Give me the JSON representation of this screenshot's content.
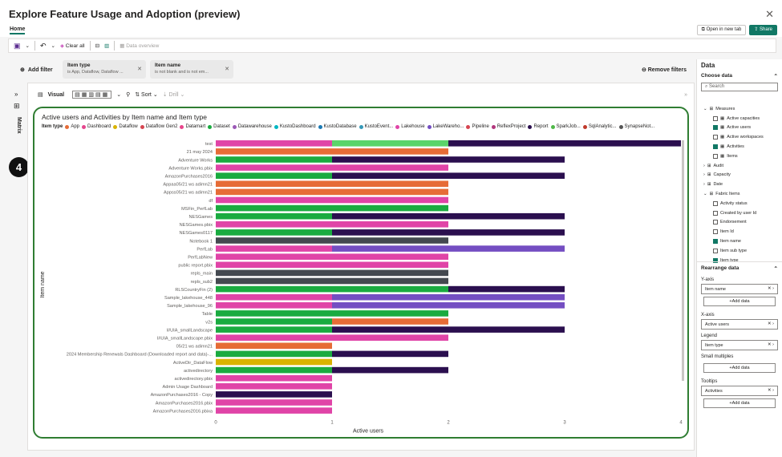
{
  "app": {
    "title": "Explore Feature Usage and Adoption (preview)",
    "tab_home": "Home",
    "open_new_tab": "Open in new tab",
    "share": "Share"
  },
  "toolbar": {
    "clear_all": "Clear all",
    "data_overview": "Data overview"
  },
  "filters": {
    "add_filter": "Add filter",
    "remove_filters": "Remove filters",
    "chips": [
      {
        "title": "Item type",
        "summary": "is App, Dataflow, Dataflow ..."
      },
      {
        "title": "Item name",
        "summary": "is not blank and is not em..."
      }
    ]
  },
  "left_rail": {
    "label": "Matrix",
    "step_badge": "4"
  },
  "visual_toolbar": {
    "visual": "Visual",
    "sort": "Sort",
    "drill": "Drill"
  },
  "chart_data": {
    "type": "bar",
    "orientation": "horizontal-stacked",
    "title": "Active users and Activities by Item name and Item type",
    "xlabel": "Active users",
    "ylabel": "Item name",
    "xlim": [
      0,
      4
    ],
    "xticks": [
      "0",
      "1",
      "2",
      "3",
      "4"
    ],
    "legend_title": "Item type",
    "legend": [
      {
        "name": "App",
        "color": "#e66c37"
      },
      {
        "name": "Dashboard",
        "color": "#e5468d"
      },
      {
        "name": "Dataflow",
        "color": "#d9b300"
      },
      {
        "name": "Dataflow Gen2",
        "color": "#d64550"
      },
      {
        "name": "Datamart",
        "color": "#e8458b"
      },
      {
        "name": "Dataset",
        "color": "#1aab40"
      },
      {
        "name": "Datawarehouse",
        "color": "#9b59b6"
      },
      {
        "name": "KustoDashboard",
        "color": "#00b7c3"
      },
      {
        "name": "KustoDatabase",
        "color": "#1b7ab5"
      },
      {
        "name": "KustoEvent...",
        "color": "#3599b8"
      },
      {
        "name": "Lakehouse",
        "color": "#e044a7"
      },
      {
        "name": "LakeWareho...",
        "color": "#744ec2"
      },
      {
        "name": "Pipeline",
        "color": "#d64550"
      },
      {
        "name": "ReflexProject",
        "color": "#b2367d"
      },
      {
        "name": "Report",
        "color": "#2b0f4f"
      },
      {
        "name": "SparkJob...",
        "color": "#4fb848"
      },
      {
        "name": "SqlAnalytic...",
        "color": "#c0392b"
      },
      {
        "name": "SynapseNot...",
        "color": "#555555"
      }
    ],
    "rows": [
      {
        "name": "test",
        "segments": [
          [
            "#e044a7",
            1
          ],
          [
            "#5ad46a",
            1
          ],
          [
            "#2b0f4f",
            2
          ]
        ]
      },
      {
        "name": "21 may 2024",
        "segments": [
          [
            "#e66c37",
            2
          ]
        ]
      },
      {
        "name": "Adventure Works",
        "segments": [
          [
            "#1aab40",
            1
          ],
          [
            "#2b0f4f",
            2
          ]
        ]
      },
      {
        "name": "Adventure Works.pbix",
        "segments": [
          [
            "#e044a7",
            2
          ]
        ]
      },
      {
        "name": "AmazonPurchases2016",
        "segments": [
          [
            "#1aab40",
            1
          ],
          [
            "#2b0f4f",
            2
          ]
        ]
      },
      {
        "name": "Appaa05/21 ws adimn21",
        "segments": [
          [
            "#e66c37",
            2
          ]
        ]
      },
      {
        "name": "Appss05/21 ws adimn21",
        "segments": [
          [
            "#e66c37",
            2
          ]
        ]
      },
      {
        "name": "df",
        "segments": [
          [
            "#e044a7",
            2
          ]
        ]
      },
      {
        "name": "MSFin_PerfLab",
        "segments": [
          [
            "#1aab40",
            2
          ]
        ]
      },
      {
        "name": "NESGames",
        "segments": [
          [
            "#1aab40",
            1
          ],
          [
            "#2b0f4f",
            2
          ]
        ]
      },
      {
        "name": "NESGames.pbix",
        "segments": [
          [
            "#e044a7",
            2
          ]
        ]
      },
      {
        "name": "NESGames0117",
        "segments": [
          [
            "#1aab40",
            1
          ],
          [
            "#2b0f4f",
            2
          ]
        ]
      },
      {
        "name": "Notebook 1",
        "segments": [
          [
            "#444950",
            2
          ]
        ]
      },
      {
        "name": "PerfLab",
        "segments": [
          [
            "#e044a7",
            1
          ],
          [
            "#744ec2",
            2
          ]
        ]
      },
      {
        "name": "PerfLabNew",
        "segments": [
          [
            "#e044a7",
            2
          ]
        ]
      },
      {
        "name": "public report.pbix",
        "segments": [
          [
            "#e044a7",
            2
          ]
        ]
      },
      {
        "name": "repls_main",
        "segments": [
          [
            "#444950",
            2
          ]
        ]
      },
      {
        "name": "repls_sub2",
        "segments": [
          [
            "#444950",
            2
          ]
        ]
      },
      {
        "name": "RLSCountryFin (2)",
        "segments": [
          [
            "#1aab40",
            2
          ],
          [
            "#2b0f4f",
            1
          ]
        ]
      },
      {
        "name": "Sample_lakehouse_448",
        "segments": [
          [
            "#e044a7",
            1
          ],
          [
            "#744ec2",
            2
          ]
        ]
      },
      {
        "name": "Sample_lakehouse_96",
        "segments": [
          [
            "#e044a7",
            1
          ],
          [
            "#744ec2",
            2
          ]
        ]
      },
      {
        "name": "Table",
        "segments": [
          [
            "#1aab40",
            2
          ]
        ]
      },
      {
        "name": "v2s",
        "segments": [
          [
            "#1aab40",
            1
          ],
          [
            "#e66c37",
            1
          ]
        ]
      },
      {
        "name": "I#UIA_smallLandscape",
        "segments": [
          [
            "#1aab40",
            1
          ],
          [
            "#2b0f4f",
            2
          ]
        ]
      },
      {
        "name": "I#UIA_smallLandscape.pbix",
        "segments": [
          [
            "#e044a7",
            2
          ]
        ]
      },
      {
        "name": "05/21 ws adimn21",
        "segments": [
          [
            "#e66c37",
            1
          ]
        ]
      },
      {
        "name": "2024 Membership Renewals Dashboard (Downloaded report and data)-...",
        "segments": [
          [
            "#1aab40",
            1
          ],
          [
            "#2b0f4f",
            1
          ]
        ]
      },
      {
        "name": "ActiveDir_DataFlow",
        "segments": [
          [
            "#d9b300",
            1
          ]
        ]
      },
      {
        "name": "activedirectory",
        "segments": [
          [
            "#1aab40",
            1
          ],
          [
            "#2b0f4f",
            1
          ]
        ]
      },
      {
        "name": "activedirectory.pbix",
        "segments": [
          [
            "#e044a7",
            1
          ]
        ]
      },
      {
        "name": "Admin Usage Dashboard",
        "segments": [
          [
            "#e044a7",
            1
          ]
        ]
      },
      {
        "name": "AmazonPurchases2016 - Copy",
        "segments": [
          [
            "#2b0f4f",
            1
          ]
        ]
      },
      {
        "name": "AmazonPurchases2016.pbix",
        "segments": [
          [
            "#e044a7",
            1
          ]
        ]
      },
      {
        "name": "AmazonPurchases2016.pbixa",
        "segments": [
          [
            "#e044a7",
            1
          ]
        ]
      }
    ]
  },
  "right_panel": {
    "data_title": "Data",
    "choose_data": "Choose data",
    "search_placeholder": "Search",
    "tree": [
      {
        "label": "Measures",
        "kind": "group-open"
      },
      {
        "label": "Active capacities",
        "kind": "measure",
        "checked": false
      },
      {
        "label": "Active users",
        "kind": "measure",
        "checked": true
      },
      {
        "label": "Active workspaces",
        "kind": "measure",
        "checked": false
      },
      {
        "label": "Activities",
        "kind": "measure",
        "checked": true
      },
      {
        "label": "Items",
        "kind": "measure",
        "checked": false
      },
      {
        "label": "Audit",
        "kind": "table"
      },
      {
        "label": "Capacity",
        "kind": "table"
      },
      {
        "label": "Date",
        "kind": "table"
      },
      {
        "label": "Fabric Items",
        "kind": "table-open"
      },
      {
        "label": "Activity status",
        "kind": "field",
        "checked": false
      },
      {
        "label": "Created by user Id",
        "kind": "field",
        "checked": false
      },
      {
        "label": "Endorsement",
        "kind": "field",
        "checked": false
      },
      {
        "label": "Item Id",
        "kind": "field",
        "checked": false
      },
      {
        "label": "Item name",
        "kind": "field",
        "checked": true
      },
      {
        "label": "Item sub type",
        "kind": "field",
        "checked": false
      },
      {
        "label": "Item type",
        "kind": "field",
        "checked": true
      }
    ],
    "rearrange": "Rearrange data",
    "wells": [
      {
        "label": "Y-axis",
        "field": "Item name",
        "add": "+Add data"
      },
      {
        "label": "X-axis",
        "field": "Active users",
        "add": ""
      },
      {
        "label": "Legend",
        "field": "Item type",
        "add": ""
      },
      {
        "label": "Small multiples",
        "field": "",
        "add": "+Add data"
      },
      {
        "label": "Tooltips",
        "field": "Activities",
        "add": "+Add data"
      }
    ]
  }
}
